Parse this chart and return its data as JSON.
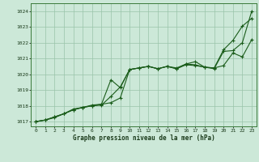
{
  "xlabel": "Graphe pression niveau de la mer (hPa)",
  "xlim": [
    -0.5,
    23.5
  ],
  "ylim": [
    1016.7,
    1024.5
  ],
  "yticks": [
    1017,
    1018,
    1019,
    1020,
    1021,
    1022,
    1023,
    1024
  ],
  "xticks": [
    0,
    1,
    2,
    3,
    4,
    5,
    6,
    7,
    8,
    9,
    10,
    11,
    12,
    13,
    14,
    15,
    16,
    17,
    18,
    19,
    20,
    21,
    22,
    23
  ],
  "background_color": "#cce8d8",
  "grid_color": "#99c4aa",
  "line_color": "#1a5c1a",
  "line1_x": [
    0,
    1,
    2,
    3,
    4,
    5,
    6,
    7,
    8,
    9,
    10,
    11,
    12,
    13,
    14,
    15,
    16,
    17,
    18,
    19,
    20,
    21,
    22,
    23
  ],
  "line1_y": [
    1017.0,
    1017.1,
    1017.3,
    1017.5,
    1017.75,
    1017.9,
    1018.05,
    1018.1,
    1018.2,
    1018.5,
    1020.3,
    1020.4,
    1020.5,
    1020.35,
    1020.5,
    1020.35,
    1020.6,
    1020.55,
    1020.45,
    1020.4,
    1020.55,
    1021.35,
    1021.1,
    1022.2
  ],
  "line2_x": [
    0,
    1,
    2,
    3,
    4,
    5,
    6,
    7,
    8,
    9,
    10,
    11,
    12,
    13,
    14,
    15,
    16,
    17,
    18,
    19,
    20,
    21,
    22,
    23
  ],
  "line2_y": [
    1017.0,
    1017.1,
    1017.25,
    1017.5,
    1017.8,
    1017.9,
    1018.0,
    1018.05,
    1018.6,
    1019.2,
    1020.3,
    1020.4,
    1020.5,
    1020.35,
    1020.5,
    1020.4,
    1020.65,
    1020.8,
    1020.45,
    1020.35,
    1021.45,
    1021.5,
    1022.0,
    1024.0
  ],
  "line3_x": [
    0,
    1,
    2,
    3,
    4,
    5,
    6,
    7,
    8,
    9,
    10,
    11,
    12,
    13,
    14,
    15,
    16,
    17,
    18,
    19,
    20,
    21,
    22,
    23
  ],
  "line3_y": [
    1017.0,
    1017.1,
    1017.3,
    1017.5,
    1017.75,
    1017.9,
    1018.0,
    1018.1,
    1019.65,
    1019.15,
    1020.3,
    1020.4,
    1020.5,
    1020.35,
    1020.5,
    1020.35,
    1020.65,
    1020.6,
    1020.45,
    1020.4,
    1021.55,
    1022.15,
    1023.05,
    1023.55
  ]
}
